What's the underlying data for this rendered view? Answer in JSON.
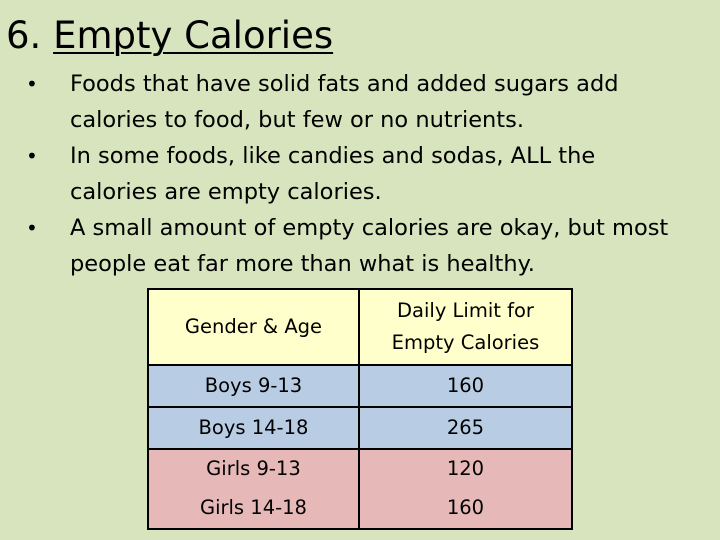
{
  "title": {
    "number": "6.",
    "text": "Empty Calories"
  },
  "bullets": [
    {
      "line1": "Foods that have solid fats and added sugars add",
      "line2": "calories to food, but few or no nutrients."
    },
    {
      "line1": "In some foods, like candies and sodas, ALL the",
      "line2": "calories are empty calories."
    },
    {
      "line1": "A small amount of empty calories are okay, but most",
      "line2": "people eat far more than what is healthy."
    }
  ],
  "bullet_glyph": "•",
  "table": {
    "headers": {
      "group": "Gender  & Age",
      "limit_line1": "Daily Limit for",
      "limit_line2": "Empty Calories"
    },
    "rows": [
      {
        "group": "Boys 9-13",
        "limit": "160"
      },
      {
        "group": "Boys 14-18",
        "limit": "265"
      },
      {
        "group": "Girls 9-13",
        "limit": "120"
      },
      {
        "group": "Girls 14-18",
        "limit": "160"
      }
    ]
  },
  "colors": {
    "background": "#d7e4bd",
    "header_fill": "#ffffcc",
    "boys_fill": "#b8cce4",
    "girls_fill": "#e6b9b8"
  }
}
